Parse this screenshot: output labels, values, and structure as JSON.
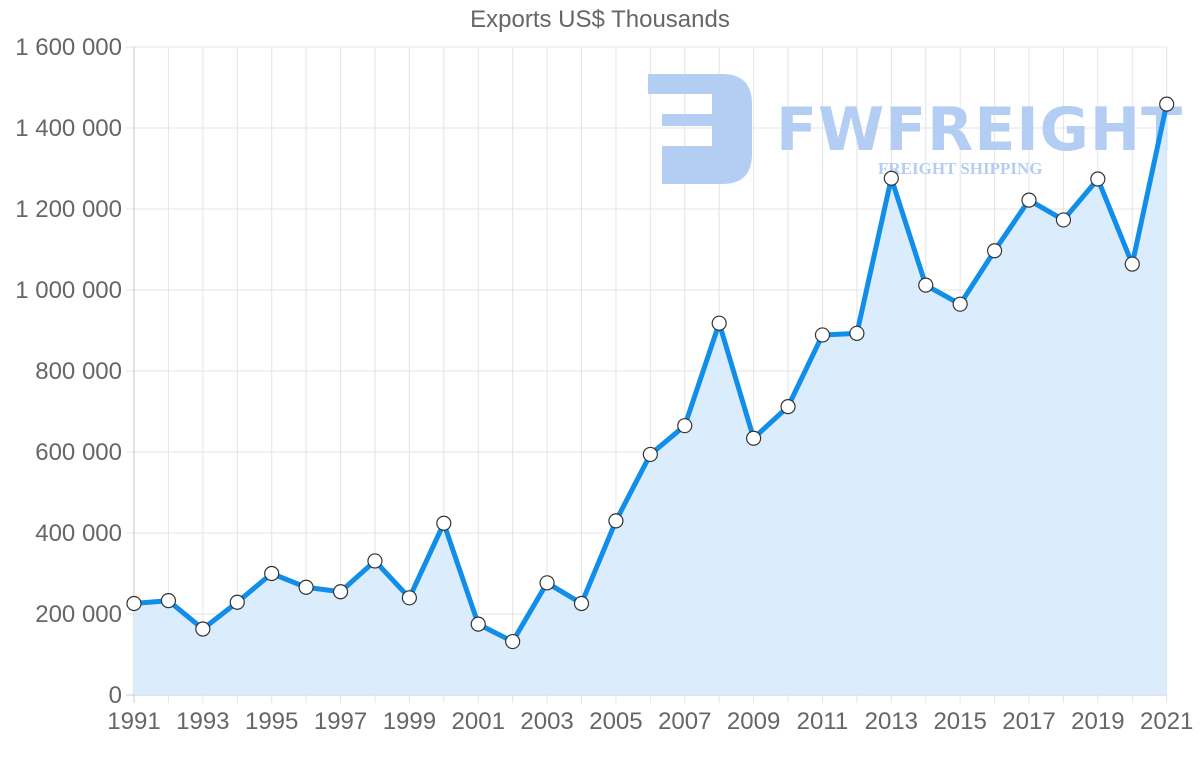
{
  "chart_data": {
    "type": "line",
    "title": "Exports US$ Thousands",
    "xlabel": "",
    "ylabel": "",
    "ylim": [
      0,
      1600000
    ],
    "yticks": [
      0,
      200000,
      400000,
      600000,
      800000,
      1000000,
      1200000,
      1400000,
      1600000
    ],
    "ytick_labels": [
      "0",
      "200 000",
      "400 000",
      "600 000",
      "800 000",
      "1 000 000",
      "1 200 000",
      "1 400 000",
      "1 600 000"
    ],
    "xtick_labels": [
      "1991",
      "1993",
      "1995",
      "1997",
      "1999",
      "2001",
      "2003",
      "2005",
      "2007",
      "2009",
      "2011",
      "2013",
      "2015",
      "2017",
      "2019",
      "2021"
    ],
    "grid": true,
    "legend": null,
    "fill": true,
    "x": [
      1991,
      1992,
      1993,
      1994,
      1995,
      1996,
      1997,
      1998,
      1999,
      2000,
      2001,
      2002,
      2003,
      2004,
      2005,
      2006,
      2007,
      2008,
      2009,
      2010,
      2011,
      2012,
      2013,
      2014,
      2015,
      2016,
      2017,
      2018,
      2019,
      2020,
      2021
    ],
    "series": [
      {
        "name": "Exports US$ Thousands",
        "color": "#118ee9",
        "fill_color": "#d9ecfc",
        "values": [
          226000,
          233000,
          163000,
          229000,
          300000,
          266000,
          255000,
          331000,
          240000,
          424000,
          175000,
          132000,
          277000,
          226000,
          430000,
          594000,
          665000,
          918000,
          634000,
          712000,
          889000,
          893000,
          1276000,
          1012000,
          965000,
          1097000,
          1222000,
          1173000,
          1274000,
          1064000,
          1459000
        ]
      }
    ]
  },
  "watermark": {
    "brand": "FWFREIGHT",
    "tagline": "FREIGHT SHIPPING",
    "color": "#b3cdf3"
  }
}
